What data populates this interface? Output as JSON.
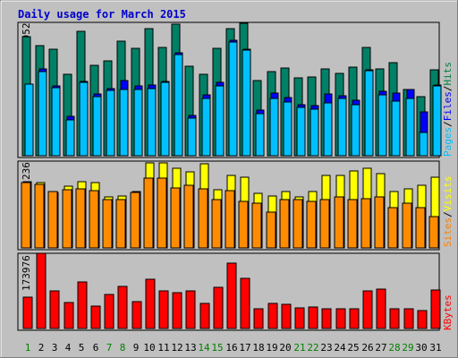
{
  "chart_data": {
    "type": "bar",
    "title": "Daily usage for March 2015",
    "categories": [
      "1",
      "2",
      "3",
      "4",
      "5",
      "6",
      "7",
      "8",
      "9",
      "10",
      "11",
      "12",
      "13",
      "14",
      "15",
      "16",
      "17",
      "18",
      "19",
      "20",
      "21",
      "22",
      "23",
      "24",
      "25",
      "26",
      "27",
      "28",
      "29",
      "30",
      "31"
    ],
    "weekend_days": [
      "1",
      "7",
      "8",
      "14",
      "15",
      "21",
      "22",
      "28",
      "29"
    ],
    "panels": [
      {
        "id": "hits",
        "max_label": "2952",
        "ylim": [
          0,
          2952
        ],
        "legend": [
          {
            "text": "Pages",
            "color": "#00c0ff"
          },
          {
            "text": "Files",
            "color": "#0000ff"
          },
          {
            "text": "Hits",
            "color": "#008040"
          }
        ],
        "separators": [
          "/",
          "/"
        ],
        "series": [
          {
            "name": "Hits",
            "color": "#008066",
            "values": [
              2680,
              2490,
              2410,
              1840,
              2820,
              2040,
              2140,
              2580,
              2420,
              2880,
              2440,
              2965,
              2020,
              1840,
              2430,
              2880,
              3000,
              1690,
              1900,
              1990,
              1750,
              1770,
              1970,
              1870,
              2000,
              2440,
              1960,
              2110,
              1500,
              1330,
              1950
            ]
          },
          {
            "name": "Files",
            "color": "#0000ff",
            "values": [
              1620,
              1960,
              1570,
              890,
              1680,
              1390,
              1510,
              1690,
              1570,
              1600,
              1680,
              2330,
              900,
              1380,
              1650,
              2610,
              2410,
              1040,
              1410,
              1310,
              1160,
              1130,
              1390,
              1350,
              1260,
              1950,
              1460,
              1410,
              1500,
              990,
              1600
            ]
          },
          {
            "name": "Pages",
            "color": "#00c0ff",
            "values": [
              1610,
              1910,
              1540,
              800,
              1660,
              1330,
              1470,
              1490,
              1490,
              1520,
              1650,
              2280,
              850,
              1300,
              1580,
              2570,
              2380,
              950,
              1300,
              1210,
              1090,
              1060,
              1200,
              1290,
              1150,
              1920,
              1380,
              1240,
              1300,
              520,
              1580
            ]
          }
        ]
      },
      {
        "id": "visits",
        "max_label": "236",
        "ylim": [
          0,
          236
        ],
        "legend": [
          {
            "text": "Sites",
            "color": "#ff8000"
          },
          {
            "text": "Visits",
            "color": "#ffff00"
          }
        ],
        "separators": [
          "/"
        ],
        "series": [
          {
            "name": "Visits",
            "color": "#ffff00",
            "values": [
              181,
              180,
              152,
              170,
              182,
              180,
              139,
              142,
              155,
              233,
              234,
              220,
              210,
              232,
              160,
              199,
              194,
              150,
              143,
              155,
              140,
              155,
              198,
              198,
              211,
              219,
              204,
              156,
              162,
              173,
              194
            ]
          },
          {
            "name": "Sites",
            "color": "#ff8c00",
            "values": [
              179,
              175,
              155,
              161,
              162,
              158,
              132,
              132,
              153,
              192,
              192,
              165,
              171,
              163,
              133,
              158,
              128,
              123,
              99,
              133,
              133,
              128,
              133,
              140,
              133,
              135,
              140,
              110,
              123,
              110,
              87
            ]
          }
        ]
      },
      {
        "id": "kbytes",
        "max_label": "173976",
        "ylim": [
          0,
          173976
        ],
        "legend": [
          {
            "text": "KBytes",
            "color": "#ff0000"
          }
        ],
        "separators": [],
        "series": [
          {
            "name": "KBytes",
            "color": "#ff0000",
            "values": [
              73000,
              173976,
              87000,
              60000,
              108000,
              52000,
              78000,
              98000,
              62000,
              114000,
              86000,
              83000,
              86000,
              57000,
              95000,
              152000,
              117000,
              46000,
              57000,
              56000,
              48000,
              49000,
              46000,
              46000,
              46000,
              86000,
              92000,
              45000,
              45000,
              41000,
              90000
            ]
          }
        ]
      }
    ]
  }
}
